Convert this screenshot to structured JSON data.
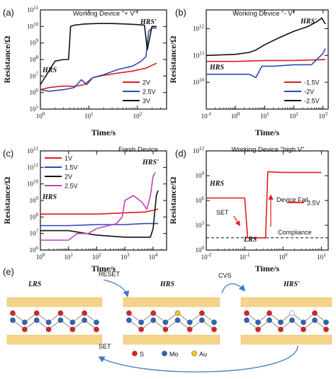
{
  "chart_data": [
    {
      "panel": "(a)",
      "type": "line",
      "title": "Working Device \"+ V\"",
      "xlabel": "Time/s",
      "ylabel": "Resistance/Ω",
      "xscale": "log",
      "yscale": "log",
      "xlim": [
        1,
        400
      ],
      "ylim": [
        100000,
        100000000000
      ],
      "xticks": [
        "10^0",
        "10^1",
        "10^2"
      ],
      "yticks": [
        "10^5",
        "10^6",
        "10^7",
        "10^8",
        "10^9",
        "10^10",
        "10^11"
      ],
      "annotations": [
        "HRS",
        "HRS'"
      ],
      "legend": "bottom-right",
      "series": [
        {
          "name": "2V",
          "color": "#e41a1c",
          "x": [
            1,
            1.5,
            3,
            5,
            8,
            12,
            20,
            40,
            80,
            150,
            250
          ],
          "y": [
            1500000,
            2000000,
            2500000,
            2400000,
            3000000,
            8000000,
            11000000,
            15000000,
            20000000,
            30000000,
            60000000
          ]
        },
        {
          "name": "2.5V",
          "color": "#2b4bb8",
          "x": [
            1,
            1.5,
            3,
            5,
            7,
            9,
            12,
            20,
            40,
            80,
            120,
            150,
            170,
            200,
            250
          ],
          "y": [
            1500000,
            1200000,
            1500000,
            2000000,
            6000000,
            3000000,
            8000000,
            12000000,
            25000000,
            40000000,
            80000000,
            150000000,
            5000000000,
            8000000000,
            8000000000
          ]
        },
        {
          "name": "3V",
          "color": "#111111",
          "x": [
            1,
            2,
            3,
            3.8,
            4.2,
            5,
            8,
            15,
            30,
            60,
            100,
            140,
            160,
            200,
            250
          ],
          "y": [
            3000000,
            80000000,
            100000000,
            100000000,
            10000000000,
            12000000000,
            14000000000,
            15000000000,
            15000000000,
            14000000000,
            13000000000,
            12000000000,
            400000000,
            10000000000,
            10000000000
          ]
        }
      ]
    },
    {
      "panel": "(b)",
      "type": "line",
      "title": "Working Device \"- V\"",
      "xlabel": "Time/s",
      "ylabel": "Resistance/Ω",
      "xscale": "log",
      "yscale": "log",
      "xlim": [
        0.1,
        1500
      ],
      "ylim": [
        1000000000,
        5000000000000
      ],
      "xticks": [
        "10^-1",
        "10^0",
        "10^1",
        "10^2",
        "10^3"
      ],
      "yticks": [
        "10^10",
        "10^11",
        "10^12"
      ],
      "annotations": [
        "HRS",
        "HRS'"
      ],
      "legend": "bottom-right",
      "series": [
        {
          "name": "-1.5V",
          "color": "#e41a1c",
          "x": [
            0.1,
            1,
            10,
            100,
            1000,
            1200
          ],
          "y": [
            60000000000,
            60000000000,
            65000000000,
            65000000000,
            70000000000,
            70000000000
          ]
        },
        {
          "name": "-2V",
          "color": "#2b4bb8",
          "x": [
            0.1,
            1,
            3,
            5,
            8,
            20,
            100,
            400,
            1000,
            1200
          ],
          "y": [
            20000000000,
            20000000000,
            20000000000,
            15000000000,
            40000000000,
            40000000000,
            45000000000,
            45000000000,
            120000000000,
            180000000000
          ]
        },
        {
          "name": "-2.5V",
          "color": "#111111",
          "x": [
            0.1,
            1,
            3,
            5,
            10,
            30,
            100,
            300,
            600,
            900,
            1200
          ],
          "y": [
            100000000000,
            110000000000,
            130000000000,
            160000000000,
            250000000000,
            450000000000,
            800000000000,
            1200000000000,
            1800000000000,
            2500000000000,
            1500000000000
          ]
        }
      ]
    },
    {
      "panel": "(c)",
      "type": "line",
      "title": "Fresh Device",
      "xlabel": "Time/s",
      "ylabel": "Resistance/Ω",
      "xscale": "log",
      "yscale": "log",
      "xlim": [
        1,
        30000
      ],
      "ylim": [
        1000000,
        1000000000000
      ],
      "xticks": [
        "10^0",
        "10^1",
        "10^2",
        "10^3",
        "10^4"
      ],
      "yticks": [
        "10^6",
        "10^7",
        "10^8",
        "10^9",
        "10^10",
        "10^11",
        "10^12"
      ],
      "annotations": [
        "HRS",
        "HRS'"
      ],
      "legend": "top-left",
      "series": [
        {
          "name": "1V",
          "color": "#e41a1c",
          "x": [
            1,
            10,
            100,
            1000,
            5000,
            10000,
            15000
          ],
          "y": [
            150000000,
            150000000,
            150000000,
            180000000,
            200000000,
            250000000,
            300000000
          ]
        },
        {
          "name": "1.5V",
          "color": "#2b4bb8",
          "x": [
            1,
            10,
            100,
            1000,
            5000,
            15000
          ],
          "y": [
            30000000,
            30000000,
            35000000,
            35000000,
            40000000,
            40000000
          ]
        },
        {
          "name": "2V",
          "color": "#111111",
          "x": [
            1,
            10,
            100,
            1000,
            5000,
            8000,
            10000,
            13000,
            15000
          ],
          "y": [
            15000000,
            15000000,
            8000000,
            6000000,
            6000000,
            6000000,
            20000000,
            2000000000,
            4000000000
          ]
        },
        {
          "name": "2.5V",
          "color": "#c040c0",
          "x": [
            1,
            10,
            20,
            50,
            100,
            500,
            800,
            1000,
            2000,
            4000,
            6000,
            8000,
            10000,
            12000
          ],
          "y": [
            4000000,
            4000000,
            10000000,
            10000000,
            20000000,
            40000000,
            100000000,
            1000000000,
            2000000000,
            800000000,
            300000000,
            2000000000,
            30000000000,
            50000000000
          ]
        }
      ]
    },
    {
      "panel": "(d)",
      "type": "line",
      "title": "Working Device \"high V\"",
      "xlabel": "Time/s",
      "ylabel": "Resistance/Ω",
      "xscale": "log",
      "yscale": "log",
      "xlim": [
        0.01,
        15
      ],
      "ylim": [
        1,
        1000000000000
      ],
      "xticks": [
        "10^-2",
        "10^-1",
        "10^0",
        "10^1"
      ],
      "yticks": [
        "10^0",
        "10^3",
        "10^6",
        "10^9",
        "10^12"
      ],
      "annotations": [
        "HRS",
        "LRS",
        "SET",
        "Device Fail",
        "Compliance"
      ],
      "legend": "right",
      "compliance_level": 30,
      "series": [
        {
          "name": "3.5V",
          "color": "#e41a1c",
          "x": [
            0.01,
            0.05,
            0.1,
            0.12,
            0.15,
            0.3,
            0.35,
            0.4,
            1,
            5,
            10
          ],
          "y": [
            2000000,
            2000000,
            2000000,
            30,
            30,
            30,
            30,
            3000000000,
            2500000000,
            2500000000,
            2500000000
          ]
        }
      ]
    }
  ],
  "schematic": {
    "panel": "(e)",
    "states": [
      "LRS",
      "HRS",
      "HRS'"
    ],
    "arrows": [
      "RESET",
      "CVS",
      "SET"
    ],
    "legend": [
      {
        "label": "S",
        "color": "#e02020"
      },
      {
        "label": "Mo",
        "color": "#2f63b8"
      },
      {
        "label": "Au",
        "color": "#f2c318"
      }
    ]
  }
}
